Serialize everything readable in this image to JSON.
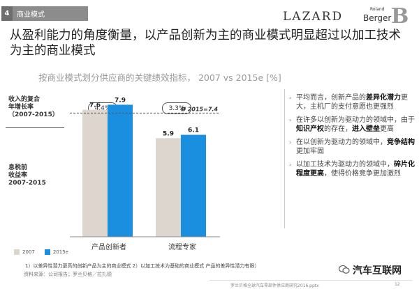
{
  "header": {
    "section_number": "4",
    "section_title": "商业模式",
    "logo_lazard": "LAZARD",
    "logo_rb_top": "Roland",
    "logo_rb_bottom": "Berger",
    "logo_rb_mark": "B"
  },
  "headline": "从盈利能力的角度衡量，以产品创新为主的商业模式明显超过以加工技术为主的商业模式",
  "subtitle": "按商业模式划分供应商的关键绩效指标， 2007 vs 2015e [%]",
  "left_labels": {
    "cagr": [
      "收入的复合",
      "年增长率",
      "（2007-2015）"
    ],
    "ebit": [
      "息税前",
      "收益率",
      "2007-2015"
    ]
  },
  "chart_data": {
    "type": "bar",
    "title": "按商业模式划分供应商的关键绩效指标， 2007 vs 2015e [%]",
    "categories": [
      "产品创新者",
      "流程专家"
    ],
    "series": [
      {
        "name": "2007",
        "values": [
          7.6,
          5.9
        ],
        "color": "#dcd6cf"
      },
      {
        "name": "2015e",
        "values": [
          7.9,
          6.1
        ],
        "color": "#1a8fe0"
      }
    ],
    "value_labels": [
      "7.6",
      "7.9",
      "5.9",
      "6.1"
    ],
    "growth_rates": [
      "4.4%",
      "3.3%"
    ],
    "reference_line": {
      "value": 7.4,
      "label": "Ø 2015=7.4"
    },
    "ylim": [
      0,
      9
    ],
    "legend_position": "bottom-left",
    "grid": false
  },
  "bullets": [
    {
      "parts": [
        {
          "t": "平均而言，创新产品的",
          "b": false
        },
        {
          "t": "差异化潜力",
          "b": true
        },
        {
          "t": "更大，主机厂的支付意愿也更强烈",
          "b": false
        }
      ]
    },
    {
      "parts": [
        {
          "t": "在许多以创新为驱动力的领域中，由于",
          "b": false
        },
        {
          "t": "知识产权",
          "b": true
        },
        {
          "t": "的存在，",
          "b": false
        },
        {
          "t": "进入壁垒",
          "b": true
        },
        {
          "t": "更高",
          "b": false
        }
      ]
    },
    {
      "parts": [
        {
          "t": "在以创新为驱动力的领域中，",
          "b": false
        },
        {
          "t": "竞争结构",
          "b": true
        },
        {
          "t": "更加牢固",
          "b": false
        }
      ]
    },
    {
      "parts": [
        {
          "t": "以加工技术为驱动力的领域中，",
          "b": false
        },
        {
          "t": "碎片化程度更高",
          "b": true
        },
        {
          "t": "，使得价格竞争更加激烈",
          "b": false
        }
      ]
    }
  ],
  "footnote": "1）以差异性潜力更高的创新产品为主的商业模式    2）以加工技术为基础的商业模式 产品的差异性潜力有限）",
  "source_note": "资料来源：公司报告；罗兰贝格／拉扎德",
  "watermark": "汽车互联网",
  "footer_text": "罗兰贝格全球汽车零部件供应商研究2016.pptx",
  "page_number": "12"
}
